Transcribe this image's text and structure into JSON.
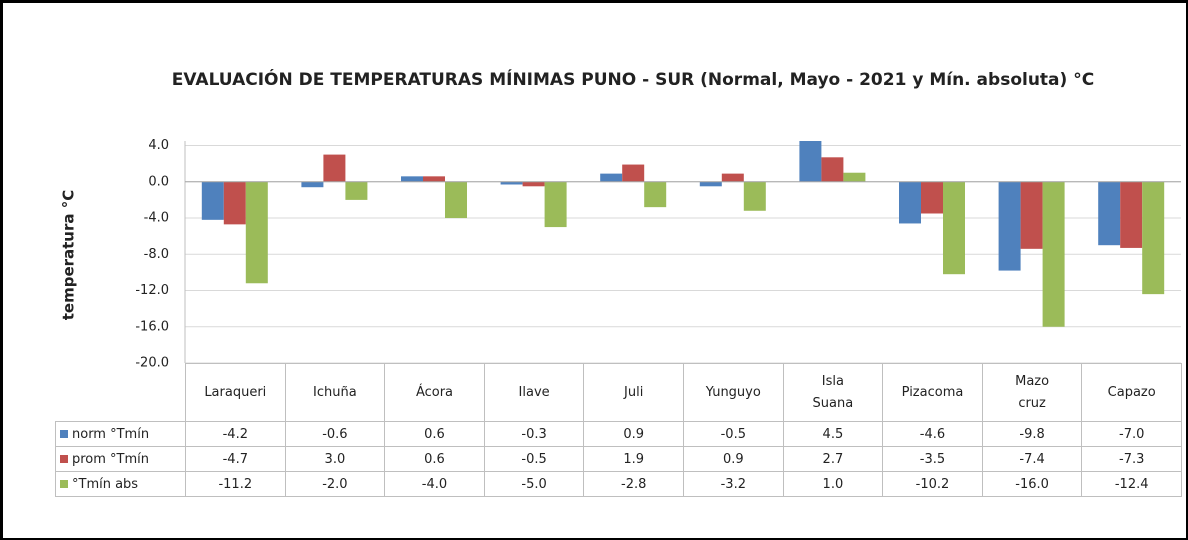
{
  "chart_data": {
    "type": "bar",
    "title": "EVALUACIÓN DE TEMPERATURAS MÍNIMAS PUNO - SUR  (Normal, Mayo - 2021 y  Mín. absoluta) °C",
    "y_label": "temperatura °C",
    "categories": [
      "Laraqueri",
      "Ichuña",
      "Ácora",
      "Ilave",
      "Juli",
      "Yunguyo",
      "Isla Suana",
      "Pizacoma",
      "Mazo cruz",
      "Capazo"
    ],
    "series": [
      {
        "name": "norm °Tmín",
        "color": "#4f81bd",
        "values": [
          -4.2,
          -0.6,
          0.6,
          -0.3,
          0.9,
          -0.5,
          4.5,
          -4.6,
          -9.8,
          -7.0
        ],
        "value_labels": [
          "-4.2",
          "-0.6",
          "0.6",
          "-0.3",
          "0.9",
          "-0.5",
          "4.5",
          "-4.6",
          "-9.8",
          "-7.0"
        ]
      },
      {
        "name": "prom °Tmín",
        "color": "#c0504d",
        "values": [
          -4.7,
          3.0,
          0.6,
          -0.5,
          1.9,
          0.9,
          2.7,
          -3.5,
          -7.4,
          -7.3
        ],
        "value_labels": [
          "-4.7",
          "3.0",
          "0.6",
          "-0.5",
          "1.9",
          "0.9",
          "2.7",
          "-3.5",
          "-7.4",
          "-7.3"
        ]
      },
      {
        "name": "°Tmín abs",
        "color": "#9bbb59",
        "values": [
          -11.2,
          -2.0,
          -4.0,
          -5.0,
          -2.8,
          -3.2,
          1.0,
          -10.2,
          -16.0,
          -12.4
        ],
        "value_labels": [
          "-11.2",
          "-2.0",
          "-4.0",
          "-5.0",
          "-2.8",
          "-3.2",
          "1.0",
          "-10.2",
          "-16.0",
          "-12.4"
        ]
      }
    ],
    "ylim": [
      -20,
      4.5
    ],
    "yticks": [
      {
        "value": 4,
        "label": "4.0"
      },
      {
        "value": 0,
        "label": "0.0"
      },
      {
        "value": -4,
        "label": "-4.0"
      },
      {
        "value": -8,
        "label": "-8.0"
      },
      {
        "value": -12,
        "label": "-12.0"
      },
      {
        "value": -16,
        "label": "-16.0"
      },
      {
        "value": -20,
        "label": "-20.0"
      }
    ],
    "grid": true
  }
}
